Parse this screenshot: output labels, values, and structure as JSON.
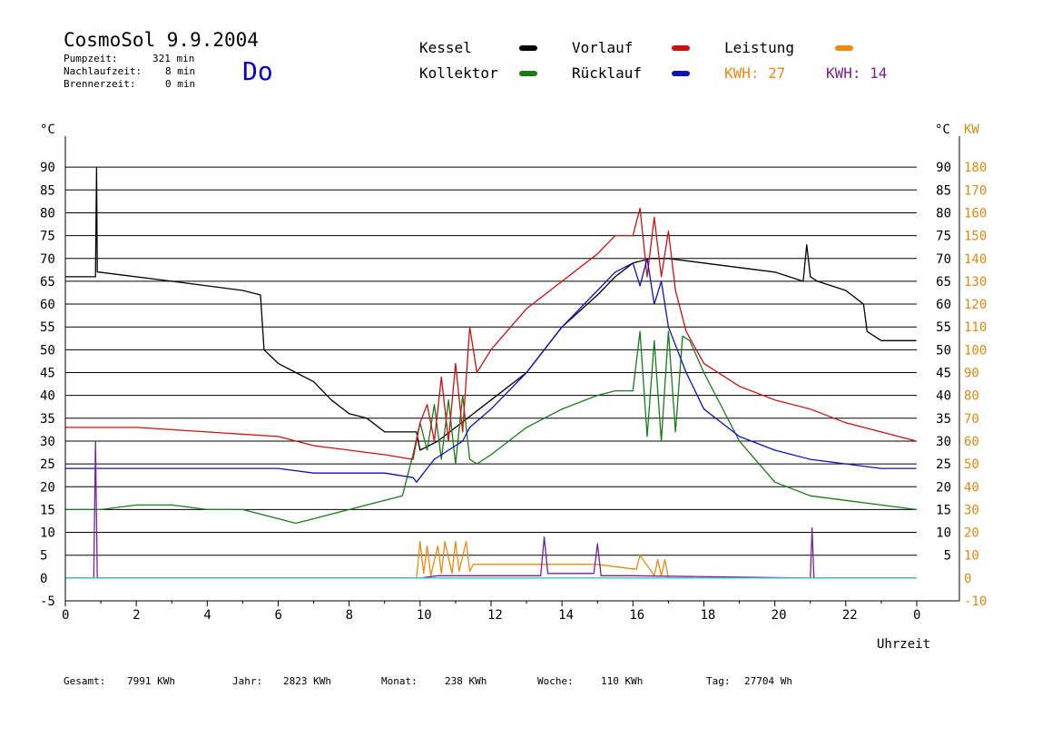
{
  "header": {
    "title": "CosmoSol 9.9.2004",
    "day": "Do",
    "stats": [
      {
        "label": "Pumpzeit:",
        "value": "321 min"
      },
      {
        "label": "Nachlaufzeit:",
        "value": "8 min"
      },
      {
        "label": "Brennerzeit:",
        "value": "0 min"
      }
    ]
  },
  "legend": {
    "kessel": "Kessel",
    "kollektor": "Kollektor",
    "vorlauf": "Vorlauf",
    "ruecklauf": "Rücklauf",
    "leistung": "Leistung",
    "kwh1": "KWH: 27",
    "kwh2": "KWH: 14",
    "colors": {
      "kessel": "#000000",
      "kollektor": "#1a7a1a",
      "vorlauf": "#cc1111",
      "ruecklauf": "#1111bb",
      "leistung": "#ee8811",
      "kwh2": "#772299"
    }
  },
  "footer": {
    "gesamt_label": "Gesamt:",
    "gesamt_value": "7991 KWh",
    "jahr_label": "Jahr:",
    "jahr_value": "2823 KWh",
    "monat_label": "Monat:",
    "monat_value": "238 KWh",
    "woche_label": "Woche:",
    "woche_value": "110 KWh",
    "tag_label": "Tag:",
    "tag_value": "27704 Wh"
  },
  "chart_data": {
    "type": "line",
    "xlabel": "Uhrzeit",
    "ylabel_left": "°C",
    "ylabel_right_unit": "°C",
    "ylabel_right_power": "KW",
    "xlim": [
      0,
      24
    ],
    "ylim": [
      -5,
      95
    ],
    "x_ticks": [
      "0",
      "2",
      "4",
      "6",
      "8",
      "10",
      "12",
      "14",
      "16",
      "18",
      "20",
      "22",
      "0"
    ],
    "y_ticks": [
      "-5",
      "0",
      "5",
      "10",
      "15",
      "20",
      "25",
      "30",
      "35",
      "40",
      "45",
      "50",
      "55",
      "60",
      "65",
      "70",
      "75",
      "80",
      "85",
      "90"
    ],
    "y_ticks_right": [
      "5",
      "10",
      "15",
      "20",
      "25",
      "30",
      "35",
      "40",
      "45",
      "50",
      "55",
      "60",
      "65",
      "70",
      "75",
      "80",
      "85",
      "90"
    ],
    "power_ticks": [
      "-10",
      "0",
      "10",
      "20",
      "30",
      "40",
      "50",
      "60",
      "70",
      "80",
      "90",
      "100",
      "110",
      "120",
      "130",
      "140",
      "150",
      "160",
      "170",
      "180"
    ],
    "grid": true,
    "series": [
      {
        "name": "Kessel",
        "color": "#000000",
        "x": [
          0,
          0.75,
          0.85,
          0.88,
          0.9,
          0.95,
          3,
          5,
          5.5,
          5.6,
          6,
          6.5,
          7,
          7.5,
          8,
          8.5,
          9,
          9,
          9.9,
          10,
          10.5,
          11,
          12,
          13,
          13.5,
          14,
          15,
          15.5,
          16,
          16.5,
          17,
          18,
          19,
          20,
          20.8,
          20.9,
          21,
          21.2,
          22,
          22.5,
          22.6,
          23,
          23.99
        ],
        "values": [
          66,
          66,
          66,
          90,
          67,
          67,
          65,
          63,
          62,
          50,
          47,
          45,
          43,
          39,
          36,
          35,
          32,
          32,
          32,
          28,
          30,
          33,
          39,
          45,
          50,
          55,
          62,
          66,
          69,
          70,
          70,
          69,
          68,
          67,
          65,
          73,
          66,
          65,
          63,
          60,
          54,
          52,
          52
        ]
      },
      {
        "name": "Kollektor",
        "color": "#1a7a1a",
        "x": [
          0,
          1,
          2,
          3,
          4,
          5,
          6,
          6.5,
          7,
          8,
          9,
          9.5,
          9.8,
          10,
          10.2,
          10.4,
          10.6,
          10.8,
          11,
          11.2,
          11.4,
          11.6,
          12,
          13,
          14,
          15,
          15.5,
          16,
          16.2,
          16.4,
          16.6,
          16.8,
          17,
          17.2,
          17.4,
          17.6,
          18,
          19,
          20,
          21,
          22,
          23,
          23.99
        ],
        "values": [
          15,
          15,
          16,
          16,
          15,
          15,
          13,
          12,
          13,
          15,
          17,
          18,
          27,
          34,
          28,
          38,
          26,
          39,
          25,
          40,
          26,
          25,
          27,
          33,
          37,
          40,
          41,
          41,
          54,
          31,
          52,
          30,
          54,
          32,
          53,
          52,
          45,
          30,
          21,
          18,
          17,
          16,
          15
        ]
      },
      {
        "name": "Vorlauf",
        "color": "#cc1111",
        "x": [
          0,
          2,
          4,
          6,
          7,
          8,
          9,
          9.8,
          10,
          10.2,
          10.4,
          10.6,
          10.8,
          11,
          11.2,
          11.4,
          11.6,
          12,
          13,
          14,
          15,
          15.5,
          16,
          16.2,
          16.4,
          16.6,
          16.8,
          17,
          17.2,
          17.5,
          18,
          19,
          20,
          21,
          22,
          23,
          23.99
        ],
        "values": [
          33,
          33,
          32,
          31,
          29,
          28,
          27,
          26,
          34,
          38,
          30,
          44,
          30,
          47,
          32,
          55,
          45,
          50,
          59,
          65,
          71,
          75,
          75,
          81,
          66,
          79,
          66,
          76,
          63,
          54,
          47,
          42,
          39,
          37,
          34,
          32,
          30
        ]
      },
      {
        "name": "Rücklauf",
        "color": "#1111bb",
        "x": [
          0,
          2,
          4,
          6,
          7,
          8,
          9,
          9.8,
          9.9,
          10,
          10.2,
          10.4,
          10.6,
          10.8,
          11,
          11.2,
          11.4,
          12,
          13,
          14,
          15,
          15.5,
          16,
          16.2,
          16.4,
          16.6,
          16.8,
          17,
          17.5,
          18,
          19,
          20,
          21,
          22,
          23,
          23.99
        ],
        "values": [
          24,
          24,
          24,
          24,
          23,
          23,
          23,
          22,
          21,
          22,
          24,
          26,
          27,
          28,
          29,
          30,
          33,
          37,
          45,
          55,
          63,
          67,
          69,
          64,
          70,
          60,
          65,
          55,
          45,
          37,
          31,
          28,
          26,
          25,
          24,
          24
        ]
      },
      {
        "name": "Leistung",
        "color": "#ee8811",
        "axis": "power",
        "x": [
          0,
          9.8,
          9.9,
          10,
          10.1,
          10.2,
          10.3,
          10.5,
          10.6,
          10.7,
          10.9,
          11,
          11.1,
          11.3,
          11.4,
          11.5,
          13,
          15,
          16,
          16.1,
          16.2,
          16.6,
          16.7,
          16.8,
          16.9,
          17,
          24
        ],
        "values": [
          0,
          0,
          0,
          16,
          2,
          14,
          1,
          14,
          2,
          16,
          2,
          16,
          3,
          16,
          3,
          6,
          6,
          6,
          4,
          4,
          10,
          1,
          8,
          1,
          8,
          0,
          0
        ]
      },
      {
        "name": "KWH",
        "color": "#772299",
        "axis": "power",
        "x": [
          0,
          0.8,
          0.85,
          0.9,
          0.95,
          1,
          10,
          10.5,
          11,
          11.5,
          13.4,
          13.5,
          13.6,
          14,
          14.9,
          15,
          15.1,
          16,
          21,
          21.05,
          21.1,
          21.2,
          24
        ],
        "values": [
          0,
          0,
          60,
          0,
          0,
          0,
          0,
          1,
          1,
          1,
          1,
          18,
          2,
          2,
          2,
          15,
          1,
          1,
          0,
          22,
          0,
          0,
          0
        ]
      },
      {
        "name": "",
        "color": "#33cccc",
        "x": [
          0,
          24
        ],
        "values": [
          0,
          0
        ]
      }
    ]
  }
}
